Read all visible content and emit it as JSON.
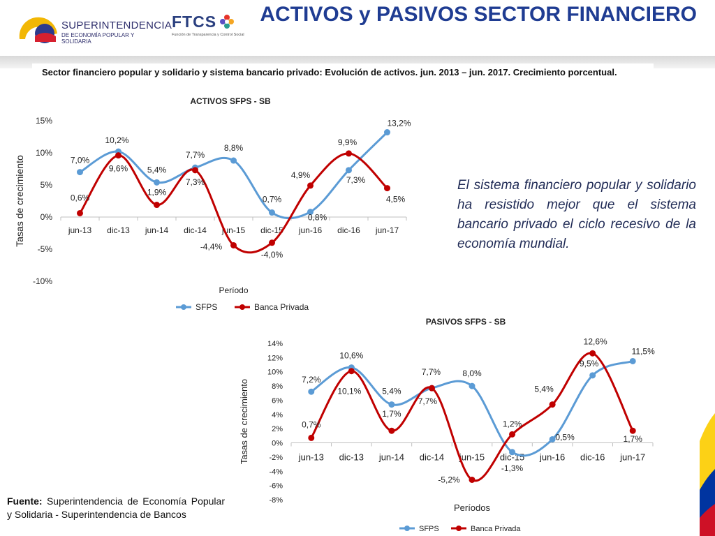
{
  "header": {
    "title": "ACTIVOS y  PASIVOS SECTOR FINANCIERO",
    "logo_superintendencia": {
      "name": "SUPERINTENDENCIA",
      "subtitle": "DE ECONOMÍA POPULAR Y SOLIDARIA"
    },
    "logo_ftcs": {
      "name": "FTCS",
      "subtitle": "Función de Transparencia y Control Social"
    }
  },
  "subtitle": "Sector financiero popular y solidario y sistema bancario privado: Evolución de activos. jun. 2013 – jun. 2017. Crecimiento porcentual.",
  "side_note": "El sistema financiero popular y solidario ha resistido mejor que el sistema bancario privado el ciclo recesivo de la economía mundial.",
  "source": {
    "label": "Fuente:",
    "text": " Superintendencia de Economía Popular y Solidaria - Superintendencia de Bancos"
  },
  "colors": {
    "sfps": "#5b9bd5",
    "banca": "#c00000",
    "title": "#1f3c92"
  },
  "chart_data": [
    {
      "type": "line",
      "title": "ACTIVOS SFPS - SB",
      "xlabel": "Período",
      "ylabel": "Tasas de crecimiento",
      "categories": [
        "jun-13",
        "dic-13",
        "jun-14",
        "dic-14",
        "jun-15",
        "dic-15",
        "jun-16",
        "dic-16",
        "jun-17"
      ],
      "ylim": [
        -10,
        15
      ],
      "yticks": [
        -10,
        -5,
        0,
        5,
        10,
        15
      ],
      "ytick_labels": [
        "-10%",
        "-5%",
        "0%",
        "5%",
        "10%",
        "15%"
      ],
      "grid": false,
      "smooth": true,
      "legend_position": "bottom",
      "series": [
        {
          "name": "SFPS",
          "color": "#5b9bd5",
          "values": [
            7.0,
            10.2,
            5.4,
            7.7,
            8.8,
            0.7,
            0.8,
            7.3,
            13.2
          ],
          "labels": [
            "7,0%",
            "10,2%",
            "5,4%",
            "7,7%",
            "8,8%",
            "0,7%",
            "0,8%",
            "7,3%",
            "13,2%"
          ]
        },
        {
          "name": "Banca Privada",
          "color": "#c00000",
          "values": [
            0.6,
            9.6,
            1.9,
            7.3,
            -4.4,
            -4.0,
            4.9,
            9.9,
            4.5
          ],
          "labels": [
            "0,6%",
            "9,6%",
            "1,9%",
            "7,3%",
            "-4,4%",
            "-4,0%",
            "4,9%",
            "9,9%",
            "4,5%"
          ]
        }
      ]
    },
    {
      "type": "line",
      "title": "PASIVOS SFPS - SB",
      "xlabel": "Períodos",
      "ylabel": "Tasas de crecimiento",
      "categories": [
        "jun-13",
        "dic-13",
        "jun-14",
        "dic-14",
        "jun-15",
        "dic-15",
        "jun-16",
        "dic-16",
        "jun-17"
      ],
      "ylim": [
        -8,
        14
      ],
      "yticks": [
        -8,
        -6,
        -4,
        -2,
        0,
        2,
        4,
        6,
        8,
        10,
        12,
        14
      ],
      "ytick_labels": [
        "-8%",
        "-6%",
        "-4%",
        "-2%",
        "0%",
        "2%",
        "4%",
        "6%",
        "8%",
        "10%",
        "12%",
        "14%"
      ],
      "grid": false,
      "smooth": true,
      "legend_position": "bottom",
      "series": [
        {
          "name": "SFPS",
          "color": "#5b9bd5",
          "values": [
            7.2,
            10.6,
            5.4,
            7.7,
            8.0,
            -1.3,
            0.5,
            9.5,
            11.5
          ],
          "labels": [
            "7,2%",
            "10,6%",
            "5,4%",
            "7,7%",
            "8,0%",
            "-1,3%",
            "0,5%",
            "9,5%",
            "11,5%"
          ]
        },
        {
          "name": "Banca Privada",
          "color": "#c00000",
          "values": [
            0.7,
            10.1,
            1.7,
            7.7,
            -5.2,
            1.2,
            5.4,
            12.6,
            1.7
          ],
          "labels": [
            "0,7%",
            "10,1%",
            "1,7%",
            "7,7%",
            "-5,2%",
            "1,2%",
            "5,4%",
            "12,6%",
            "1,7%"
          ]
        }
      ]
    }
  ]
}
